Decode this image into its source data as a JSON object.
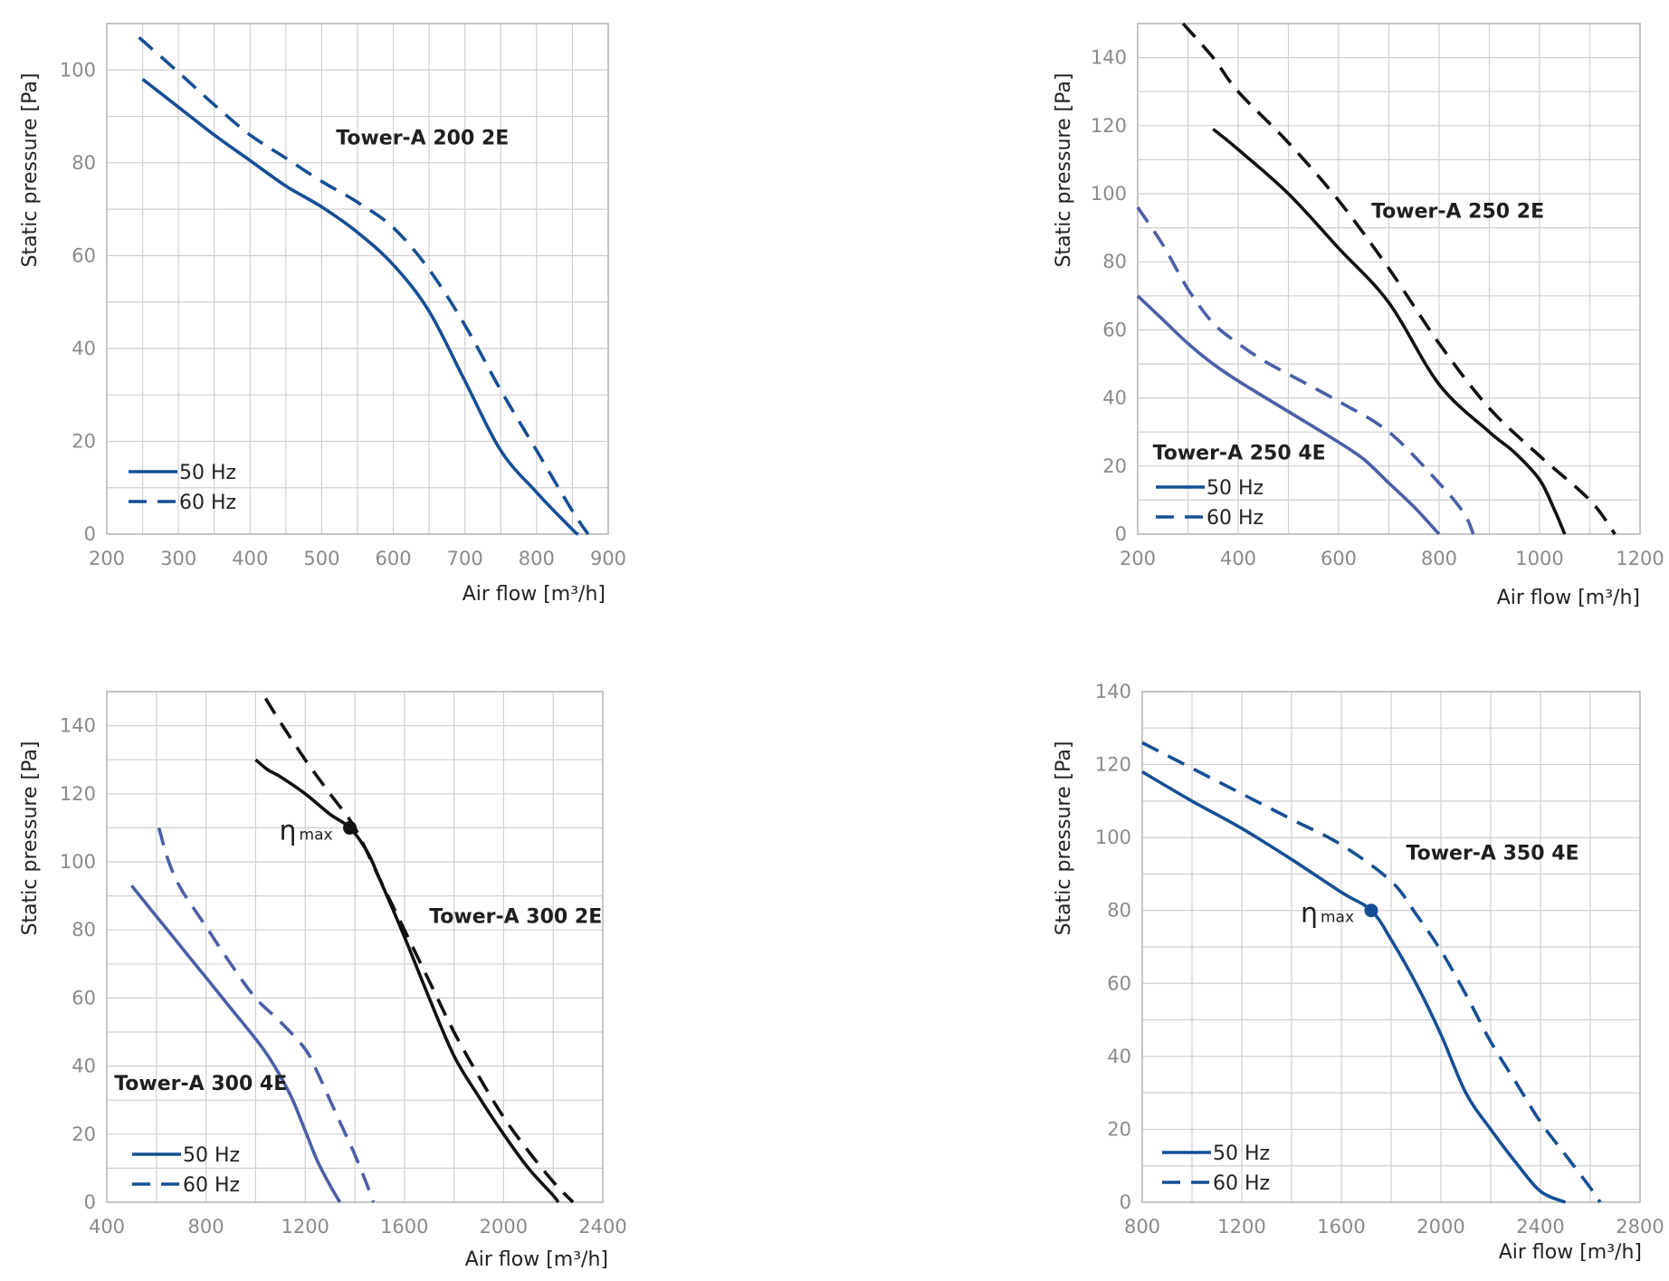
{
  "colors": {
    "blue": "#154f94",
    "light_blue": "#4a5fa6",
    "black": "#111111",
    "grid": "#cfcfcf",
    "frame": "#b5b5b5"
  },
  "chart_data": [
    {
      "type": "line",
      "title": "Tower-A 200 2E",
      "xlabel": "Air flow [m³/h]",
      "ylabel": "Static pressure [Pa]",
      "xlim": [
        200,
        900
      ],
      "ylim": [
        0,
        110
      ],
      "xticks": [
        200,
        300,
        400,
        500,
        600,
        700,
        800,
        900
      ],
      "yticks": [
        0,
        20,
        40,
        60,
        80,
        100
      ],
      "curve_labels": [
        {
          "text": "Tower-A 200 2E",
          "x": 520,
          "y": 84
        }
      ],
      "legend": [
        "50 Hz",
        "60 Hz"
      ],
      "series": [
        {
          "name": "Tower-A 200 2E 50 Hz",
          "color": "blue",
          "dash": false,
          "x": [
            250,
            300,
            350,
            400,
            450,
            500,
            550,
            600,
            650,
            700,
            750,
            800,
            850,
            858
          ],
          "y": [
            98,
            92,
            86,
            80.5,
            75,
            70.5,
            65,
            58,
            48,
            33,
            18,
            9,
            1,
            0
          ]
        },
        {
          "name": "Tower-A 200 2E 60 Hz",
          "color": "blue",
          "dash": true,
          "x": [
            245,
            300,
            350,
            400,
            450,
            500,
            550,
            600,
            650,
            700,
            750,
            800,
            850,
            872
          ],
          "y": [
            107,
            99.5,
            92.5,
            86,
            81,
            76,
            71.5,
            66,
            57,
            45,
            31,
            18,
            5,
            0
          ]
        }
      ]
    },
    {
      "type": "line",
      "title": "Tower-A 250 2E / Tower-A 250 4E",
      "xlabel": "Air flow [m³/h]",
      "ylabel": "Static pressure [Pa]",
      "xlim": [
        200,
        1200
      ],
      "ylim": [
        0,
        150
      ],
      "xticks": [
        200,
        400,
        600,
        800,
        1000,
        1200
      ],
      "yticks": [
        0,
        20,
        40,
        60,
        80,
        100,
        120,
        140
      ],
      "curve_labels": [
        {
          "text": "Tower-A 250 2E",
          "x": 665,
          "y": 93
        },
        {
          "text": "Tower-A 250 4E",
          "x": 230,
          "y": 22
        }
      ],
      "legend": [
        "50 Hz",
        "60 Hz"
      ],
      "series": [
        {
          "name": "Tower-A 250 2E 50 Hz",
          "color": "black",
          "dash": false,
          "x": [
            350,
            400,
            500,
            600,
            700,
            800,
            900,
            950,
            1000,
            1030,
            1050
          ],
          "y": [
            119,
            113,
            100,
            84,
            68,
            44,
            30,
            24,
            16,
            7,
            0
          ]
        },
        {
          "name": "Tower-A 250 2E 60 Hz",
          "color": "black",
          "dash": true,
          "x": [
            290,
            350,
            400,
            500,
            600,
            700,
            800,
            900,
            1000,
            1100,
            1150
          ],
          "y": [
            150,
            140,
            130,
            115,
            98,
            78,
            56,
            37,
            23,
            10,
            0
          ]
        },
        {
          "name": "Tower-A 250 4E 50 Hz",
          "color": "light_blue",
          "dash": false,
          "x": [
            200,
            250,
            300,
            350,
            400,
            500,
            600,
            650,
            700,
            750,
            800
          ],
          "y": [
            70,
            63,
            56,
            50,
            45,
            36,
            27,
            22,
            15,
            8,
            0
          ]
        },
        {
          "name": "Tower-A 250 4E 60 Hz",
          "color": "light_blue",
          "dash": true,
          "x": [
            200,
            250,
            300,
            350,
            400,
            450,
            500,
            600,
            700,
            800,
            850,
            868
          ],
          "y": [
            96,
            85,
            72,
            62,
            56,
            51,
            47,
            39,
            30,
            15,
            6,
            0
          ]
        }
      ]
    },
    {
      "type": "line",
      "title": "Tower-A 300 2E / Tower-A 300 4E",
      "xlabel": "Air flow [m³/h]",
      "ylabel": "Static pressure [Pa]",
      "xlim": [
        400,
        2400
      ],
      "ylim": [
        0,
        150
      ],
      "xticks": [
        400,
        800,
        1200,
        1600,
        2000,
        2400
      ],
      "yticks": [
        0,
        20,
        40,
        60,
        80,
        100,
        120,
        140
      ],
      "curve_labels": [
        {
          "text": "Tower-A 300 2E",
          "x": 1700,
          "y": 82
        },
        {
          "text": "Tower-A 300 4E",
          "x": 430,
          "y": 33
        }
      ],
      "annotations": [
        {
          "text": "η",
          "sub": "max",
          "x": 1380,
          "y": 110,
          "color": "black"
        }
      ],
      "legend": [
        "50 Hz",
        "60 Hz"
      ],
      "series": [
        {
          "name": "Tower-A 300 2E 50 Hz",
          "color": "black",
          "dash": false,
          "x": [
            1000,
            1050,
            1100,
            1200,
            1300,
            1380,
            1450,
            1500,
            1600,
            1700,
            1800,
            1900,
            2000,
            2100,
            2200,
            2220
          ],
          "y": [
            130,
            127,
            125,
            120,
            114,
            110,
            103,
            95,
            78,
            60,
            43,
            31,
            20,
            10,
            2,
            0
          ]
        },
        {
          "name": "Tower-A 300 2E 60 Hz",
          "color": "black",
          "dash": true,
          "x": [
            1040,
            1100,
            1200,
            1300,
            1400,
            1500,
            1600,
            1700,
            1800,
            1900,
            2000,
            2100,
            2200,
            2280
          ],
          "y": [
            148,
            141,
            130,
            120,
            110,
            95,
            80,
            65,
            50,
            37,
            25,
            15,
            6,
            0
          ]
        },
        {
          "name": "Tower-A 300 4E 50 Hz",
          "color": "light_blue",
          "dash": false,
          "x": [
            500,
            600,
            700,
            800,
            900,
            1000,
            1050,
            1100,
            1150,
            1200,
            1250,
            1300,
            1340
          ],
          "y": [
            93,
            84,
            75,
            66,
            57,
            48,
            43,
            37,
            30,
            21,
            12,
            5,
            0
          ]
        },
        {
          "name": "Tower-A 300 4E 60 Hz",
          "color": "light_blue",
          "dash": true,
          "x": [
            610,
            650,
            700,
            800,
            900,
            1000,
            1100,
            1200,
            1250,
            1300,
            1350,
            1400,
            1450,
            1475
          ],
          "y": [
            110,
            100,
            92,
            81,
            70,
            60,
            53,
            45,
            38,
            30,
            22,
            14,
            5,
            0
          ]
        }
      ]
    },
    {
      "type": "line",
      "title": "Tower-A 350 4E",
      "xlabel": "Air flow [m³/h]",
      "ylabel": "Static pressure [Pa]",
      "xlim": [
        800,
        2800
      ],
      "ylim": [
        0,
        140
      ],
      "xticks": [
        800,
        1200,
        1600,
        2000,
        2400,
        2800
      ],
      "yticks": [
        0,
        20,
        40,
        60,
        80,
        100,
        120,
        140
      ],
      "curve_labels": [
        {
          "text": "Tower-A 350 4E",
          "x": 1860,
          "y": 94
        }
      ],
      "annotations": [
        {
          "text": "η",
          "sub": "max",
          "x": 1720,
          "y": 80,
          "color": "blue"
        }
      ],
      "legend": [
        "50 Hz",
        "60 Hz"
      ],
      "series": [
        {
          "name": "Tower-A 350 4E 50 Hz",
          "color": "blue",
          "dash": false,
          "x": [
            800,
            1000,
            1200,
            1400,
            1600,
            1720,
            1800,
            1900,
            2000,
            2100,
            2200,
            2300,
            2400,
            2500
          ],
          "y": [
            118,
            110,
            102.5,
            94,
            85,
            80,
            72,
            60,
            46,
            30,
            20,
            11,
            3,
            0
          ]
        },
        {
          "name": "Tower-A 350 4E 60 Hz",
          "color": "blue",
          "dash": true,
          "x": [
            800,
            1000,
            1200,
            1400,
            1600,
            1800,
            1900,
            2000,
            2100,
            2200,
            2300,
            2400,
            2500,
            2600,
            2640
          ],
          "y": [
            126,
            119,
            112,
            105,
            98,
            88,
            79,
            69,
            57,
            44,
            33,
            22,
            13,
            4,
            0
          ]
        }
      ]
    }
  ]
}
